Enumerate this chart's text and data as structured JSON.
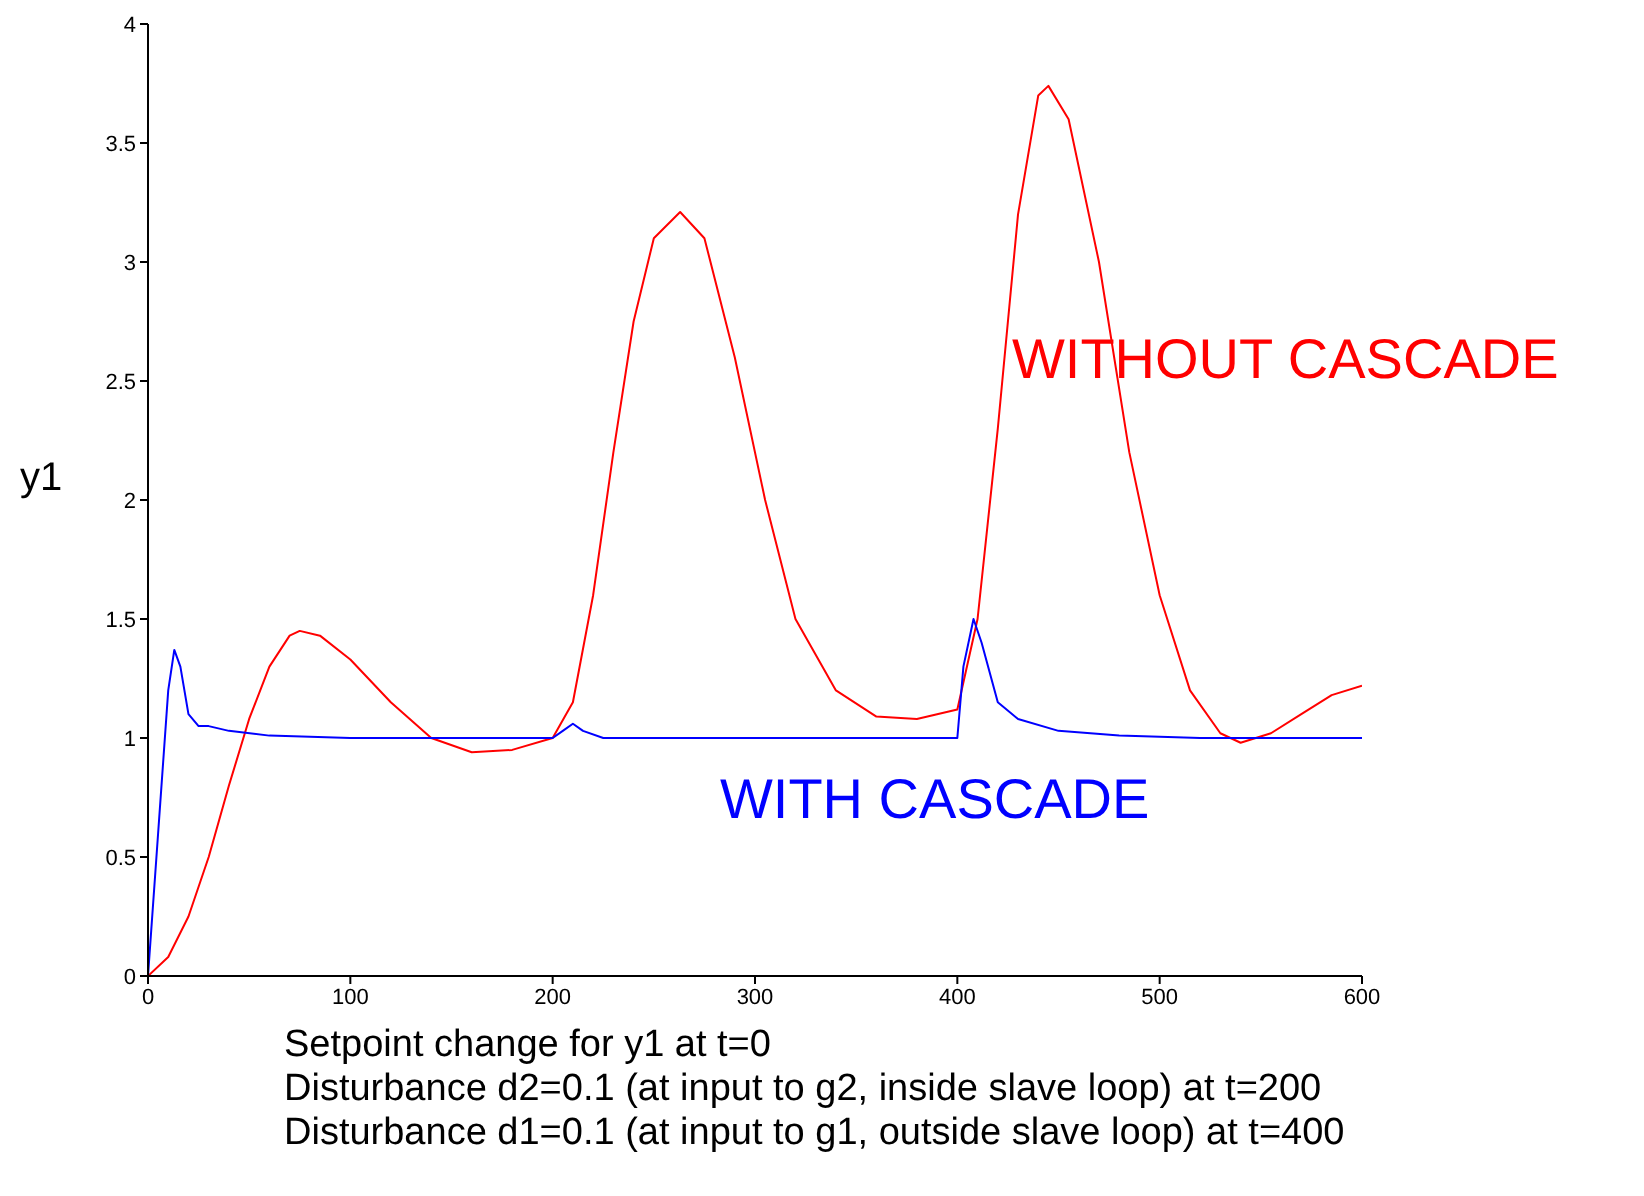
{
  "chart_data": {
    "type": "line",
    "ylabel": "y1",
    "xlim": [
      0,
      600
    ],
    "xticks": [
      0,
      100,
      200,
      300,
      400,
      500,
      600
    ],
    "ylim": [
      0,
      4
    ],
    "yticks": [
      0,
      0.5,
      1,
      1.5,
      2,
      2.5,
      3,
      3.5,
      4
    ],
    "marker": "none",
    "line_style": "solid",
    "series": [
      {
        "name": "WITHOUT CASCADE",
        "color": "#ff0000",
        "x": [
          0,
          10,
          20,
          30,
          40,
          50,
          60,
          70,
          75,
          85,
          100,
          120,
          140,
          160,
          180,
          200,
          210,
          220,
          230,
          240,
          250,
          263,
          275,
          290,
          305,
          320,
          340,
          360,
          380,
          400,
          410,
          420,
          430,
          440,
          445,
          455,
          470,
          485,
          500,
          515,
          530,
          540,
          555,
          570,
          585,
          600
        ],
        "values": [
          0,
          0.08,
          0.25,
          0.5,
          0.8,
          1.08,
          1.3,
          1.43,
          1.45,
          1.43,
          1.33,
          1.15,
          1.0,
          0.94,
          0.95,
          1.0,
          1.15,
          1.6,
          2.2,
          2.75,
          3.1,
          3.21,
          3.1,
          2.6,
          2.0,
          1.5,
          1.2,
          1.09,
          1.08,
          1.12,
          1.5,
          2.3,
          3.2,
          3.7,
          3.74,
          3.6,
          3.0,
          2.2,
          1.6,
          1.2,
          1.02,
          0.98,
          1.02,
          1.1,
          1.18,
          1.22
        ]
      },
      {
        "name": "WITH CASCADE",
        "color": "#0000ff",
        "x": [
          0,
          5,
          10,
          13,
          16,
          20,
          25,
          30,
          40,
          60,
          100,
          200,
          205,
          210,
          215,
          225,
          400,
          403,
          408,
          412,
          420,
          430,
          450,
          480,
          520,
          600
        ],
        "values": [
          0,
          0.6,
          1.2,
          1.37,
          1.3,
          1.1,
          1.05,
          1.05,
          1.03,
          1.01,
          1.0,
          1.0,
          1.03,
          1.06,
          1.03,
          1.0,
          1.0,
          1.3,
          1.5,
          1.4,
          1.15,
          1.08,
          1.03,
          1.01,
          1.0,
          1.0
        ]
      }
    ],
    "annotations": [
      "Setpoint change for y1 at t=0",
      "Disturbance d2=0.1 (at input to g2, inside slave loop) at t=200",
      "Disturbance d1=0.1 (at input to g1, outside slave loop) at t=400"
    ]
  }
}
